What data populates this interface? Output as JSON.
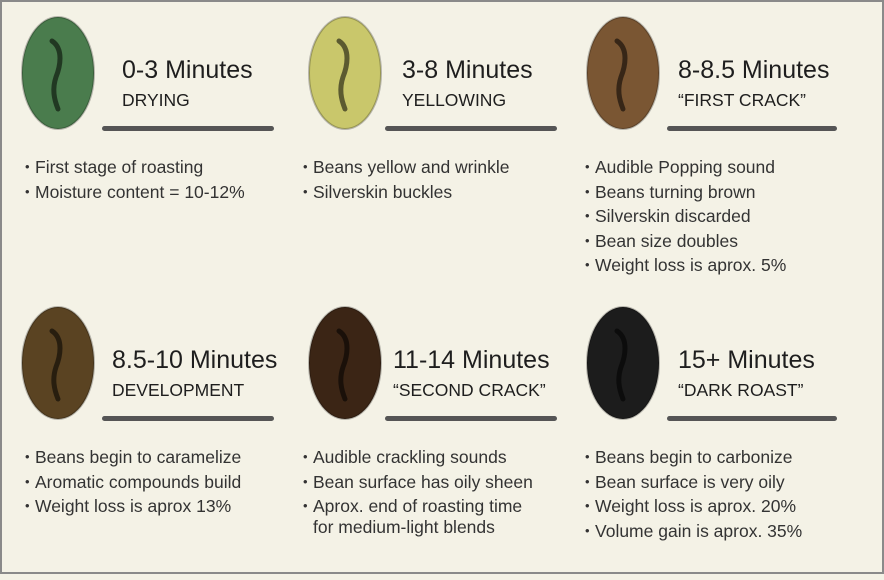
{
  "stages": [
    {
      "time": "0-3 Minutes",
      "name": "DRYING",
      "color": "#4a7c4d",
      "bullets": [
        "First stage of roasting",
        "Moisture content = 10-12%"
      ]
    },
    {
      "time": "3-8 Minutes",
      "name": "YELLOWING",
      "color": "#c9c76b",
      "bullets": [
        "Beans yellow and wrinkle",
        "Silverskin buckles"
      ]
    },
    {
      "time": "8-8.5 Minutes",
      "name": "“FIRST CRACK”",
      "color": "#7a5633",
      "bullets": [
        "Audible Popping sound",
        "Beans turning brown",
        "Silverskin discarded",
        "Bean size doubles",
        "Weight loss is aprox. 5%"
      ]
    },
    {
      "time": "8.5-10 Minutes",
      "name": "DEVELOPMENT",
      "color": "#5a4322",
      "bullets": [
        "Beans begin to caramelize",
        "Aromatic compounds build",
        "Weight loss is aprox 13%"
      ]
    },
    {
      "time": "11-14 Minutes",
      "name": "“SECOND CRACK”",
      "color": "#3b2515",
      "bullets": [
        "Audible crackling sounds",
        "Bean surface has oily sheen",
        "Aprox. end of roasting time",
        "for medium-light blends"
      ]
    },
    {
      "time": "15+ Minutes",
      "name": "“DARK ROAST”",
      "color": "#1c1c1c",
      "bullets": [
        "Beans begin to carbonize",
        "Bean surface is very oily",
        "Weight loss is aprox. 20%",
        "Volume gain is aprox. 35%"
      ]
    }
  ]
}
